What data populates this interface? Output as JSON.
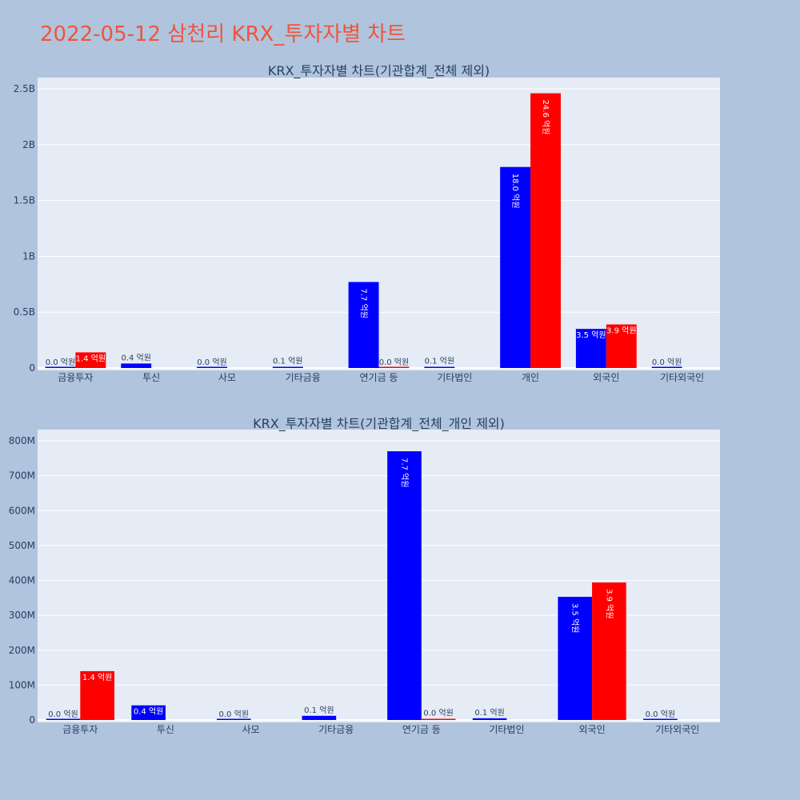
{
  "page": {
    "title": "2022-05-12 삼천리 KRX_투자자별 차트"
  },
  "colors": {
    "background": "#b0c4de",
    "plot_bg": "#e5ecf6",
    "title": "#ef553b",
    "series_a": "#0000ff",
    "series_b": "#ff0000"
  },
  "chart_data": [
    {
      "type": "bar",
      "title": "KRX_투자자별 차트(기관합계_전체 제외)",
      "categories": [
        "금융투자",
        "투신",
        "사모",
        "기타금융",
        "연기금 등",
        "기타법인",
        "개인",
        "외국인",
        "기타외국인"
      ],
      "ylim": [
        0,
        2500000000
      ],
      "yticks": [
        0,
        500000000,
        1000000000,
        1500000000,
        2000000000,
        2500000000
      ],
      "ytick_labels": [
        "0",
        "0.5B",
        "1B",
        "1.5B",
        "2B",
        "2.5B"
      ],
      "grid": true,
      "series": [
        {
          "color": "#0000ff",
          "values": [
            0,
            40000000,
            0,
            10000000,
            770000000,
            10000000,
            1800000000,
            350000000,
            0
          ],
          "labels": [
            "0.0 억원",
            "0.4 억원",
            "0.0 억원",
            "0.1 억원",
            "7.7 억원",
            "0.1 억원",
            "18.0 억원",
            "3.5 억원",
            "0.0 억원"
          ]
        },
        {
          "color": "#ff0000",
          "values": [
            140000000,
            null,
            null,
            null,
            0,
            null,
            2460000000,
            390000000,
            null
          ],
          "labels": [
            "1.4 억원",
            "",
            "",
            "",
            "0.0 억원",
            "",
            "24.6 억원",
            "3.9 억원",
            ""
          ]
        }
      ]
    },
    {
      "type": "bar",
      "title": "KRX_투자자별 차트(기관합계_전체_개인 제외)",
      "categories": [
        "금융투자",
        "투신",
        "사모",
        "기타금융",
        "연기금 등",
        "기타법인",
        "외국인",
        "기타외국인"
      ],
      "ylim": [
        0,
        800000000
      ],
      "yticks": [
        0,
        100000000,
        200000000,
        300000000,
        400000000,
        500000000,
        600000000,
        700000000,
        800000000
      ],
      "ytick_labels": [
        "0",
        "100M",
        "200M",
        "300M",
        "400M",
        "500M",
        "600M",
        "700M",
        "800M"
      ],
      "grid": true,
      "series": [
        {
          "color": "#0000ff",
          "values": [
            0,
            42000000,
            0,
            12000000,
            770000000,
            5000000,
            353000000,
            0
          ],
          "labels": [
            "0.0 억원",
            "0.4 억원",
            "0.0 억원",
            "0.1 억원",
            "7.7 억원",
            "0.1 억원",
            "3.5 억원",
            "0.0 억원"
          ]
        },
        {
          "color": "#ff0000",
          "values": [
            140000000,
            null,
            null,
            null,
            3000000,
            null,
            394000000,
            null
          ],
          "labels": [
            "1.4 억원",
            "",
            "",
            "",
            "0.0 억원",
            "",
            "3.9 억원",
            ""
          ]
        }
      ]
    }
  ]
}
